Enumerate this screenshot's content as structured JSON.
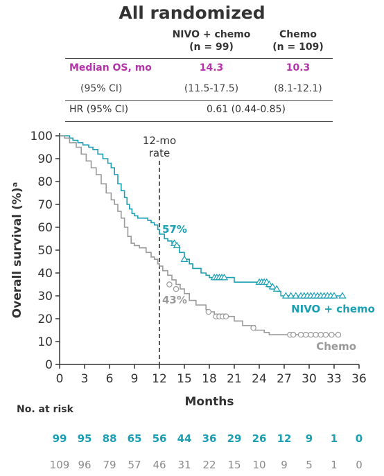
{
  "title": "All randomized",
  "table": {
    "col1_header_l1": "NIVO + chemo",
    "col1_header_l2": "(n = 99)",
    "col2_header_l1": "Chemo",
    "col2_header_l2": "(n = 109)",
    "rows": [
      {
        "label": "Median OS, mo",
        "nivo": "14.3",
        "chemo": "10.3"
      },
      {
        "label": "(95% CI)",
        "nivo": "(11.5-17.5)",
        "chemo": "(8.1-12.1)"
      }
    ],
    "hr_label": "HR (95% CI)",
    "hr_value": "0.61 (0.44-0.85)"
  },
  "chart_data": {
    "type": "line",
    "xlabel": "Months",
    "ylabel": "Overall survival (%)ᵃ",
    "xlim": [
      0,
      36
    ],
    "ylim": [
      0,
      100
    ],
    "xticks": [
      "0",
      "3",
      "6",
      "9",
      "12",
      "15",
      "18",
      "21",
      "24",
      "27",
      "30",
      "33",
      "36"
    ],
    "yticks": [
      "0",
      "10",
      "20",
      "30",
      "40",
      "50",
      "60",
      "70",
      "80",
      "90",
      "100"
    ],
    "grid": false,
    "landmark": {
      "x": 12,
      "label_l1": "12-mo",
      "label_l2": "rate"
    },
    "series": [
      {
        "name": "NIVO + chemo",
        "color": "#1a9fb3",
        "marker": "triangle",
        "rate_label": "57%",
        "x": [
          0,
          1.2,
          1.6,
          2.2,
          2.8,
          3.5,
          4.0,
          4.6,
          5.2,
          5.8,
          6.2,
          6.6,
          7.0,
          7.4,
          7.8,
          8.1,
          8.4,
          8.7,
          9.0,
          9.4,
          10.0,
          10.6,
          11.0,
          11.4,
          11.8,
          12.0,
          12.6,
          13.0,
          13.5,
          14.0,
          14.4,
          15.0,
          15.6,
          16.0,
          17.0,
          17.6,
          18.0,
          19.0,
          20.0,
          21.0,
          23.0,
          24.6,
          25.0,
          25.4,
          25.8,
          26.2,
          26.6,
          34.0
        ],
        "y": [
          100,
          99,
          98,
          97,
          96,
          95,
          94,
          92,
          90,
          88,
          86,
          83,
          79,
          76,
          73,
          70,
          68,
          66,
          65,
          64,
          64,
          63,
          62,
          61,
          59,
          57,
          55,
          54,
          53,
          52,
          49,
          46,
          44,
          42,
          40,
          39,
          38,
          38,
          38,
          36,
          36,
          35,
          34,
          33,
          33,
          32,
          30,
          30
        ],
        "censor_x": [
          13.8,
          14.1,
          15.0,
          18.6,
          18.9,
          19.2,
          19.5,
          19.8,
          24.0,
          24.3,
          24.6,
          24.9,
          25.2,
          25.6,
          26.1,
          27.2,
          27.8,
          28.4,
          29.0,
          29.4,
          29.8,
          30.2,
          30.6,
          31.0,
          31.4,
          31.8,
          32.2,
          32.6,
          33.0,
          34.0
        ],
        "censor_y": [
          53,
          52,
          46,
          38,
          38,
          38,
          38,
          38,
          36,
          36,
          36,
          36,
          35,
          34,
          33,
          30,
          30,
          30,
          30,
          30,
          30,
          30,
          30,
          30,
          30,
          30,
          30,
          30,
          30,
          30
        ]
      },
      {
        "name": "Chemo",
        "color": "#9a9a9a",
        "marker": "circle",
        "rate_label": "43%",
        "x": [
          0,
          0.6,
          1.2,
          2.0,
          2.6,
          3.2,
          3.8,
          4.4,
          5.0,
          5.6,
          6.2,
          6.6,
          7.0,
          7.4,
          7.8,
          8.2,
          8.6,
          9.0,
          9.6,
          10.4,
          11.0,
          11.4,
          11.8,
          12.0,
          12.4,
          13.0,
          13.5,
          14.0,
          14.5,
          15.0,
          15.6,
          16.4,
          17.6,
          18.0,
          18.6,
          20.0,
          21.0,
          22.0,
          23.5,
          24.6,
          25.2,
          26.4,
          27.2,
          33.5
        ],
        "y": [
          100,
          99,
          97,
          95,
          92,
          89,
          86,
          83,
          79,
          75,
          72,
          70,
          67,
          64,
          60,
          56,
          53,
          52,
          51,
          49,
          47,
          46,
          44,
          43,
          41,
          39,
          37,
          35,
          33,
          31,
          28,
          26,
          24,
          23,
          22,
          21,
          19,
          17,
          15,
          14,
          13,
          13,
          13,
          13
        ],
        "censor_x": [
          13.2,
          14.0,
          17.9,
          18.8,
          19.2,
          19.6,
          20.0,
          23.3,
          27.7,
          28.1,
          29.0,
          29.6,
          30.2,
          30.8,
          31.4,
          32.0,
          32.7,
          33.5
        ],
        "censor_y": [
          35,
          33,
          23,
          21,
          21,
          21,
          21,
          16,
          13,
          13,
          13,
          13,
          13,
          13,
          13,
          13,
          13,
          13
        ]
      }
    ]
  },
  "risk_table": {
    "label": "No. at risk",
    "nivo": [
      "99",
      "95",
      "88",
      "65",
      "56",
      "44",
      "36",
      "29",
      "26",
      "12",
      "9",
      "1",
      "0"
    ],
    "chemo": [
      "109",
      "96",
      "79",
      "57",
      "46",
      "31",
      "22",
      "15",
      "10",
      "9",
      "5",
      "1",
      "0"
    ]
  }
}
